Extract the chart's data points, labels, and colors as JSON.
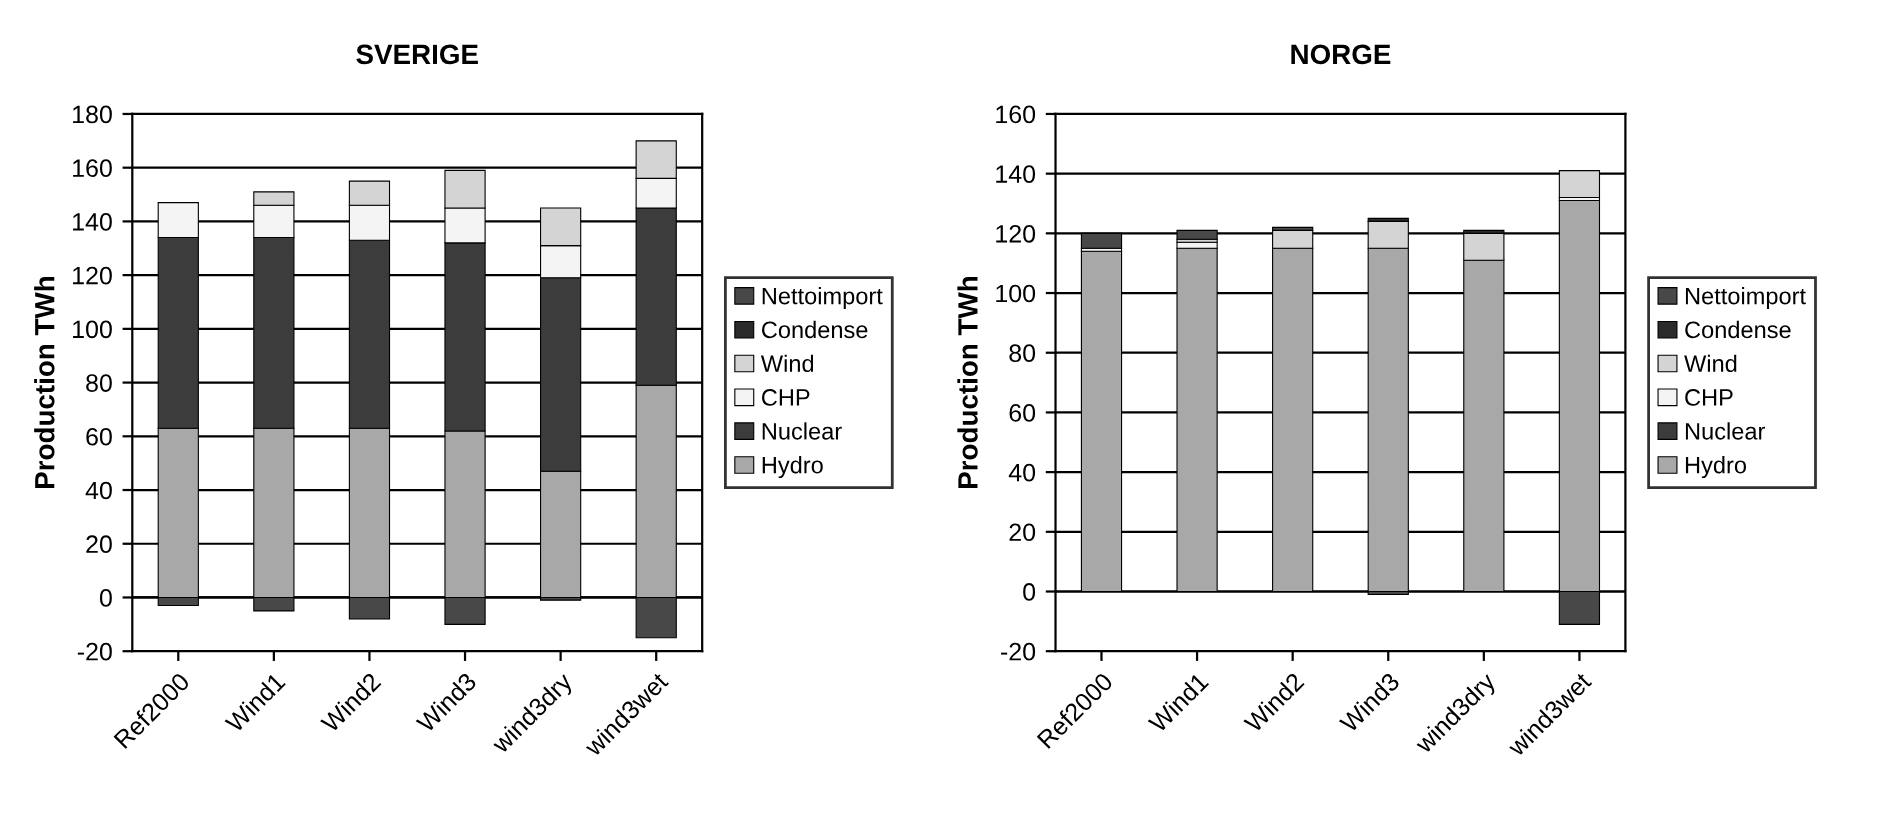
{
  "chart_data": [
    {
      "type": "bar",
      "title": "SVERIGE",
      "ylabel": "Production TWh",
      "stacked": true,
      "categories": [
        "Ref2000",
        "Wind1",
        "Wind2",
        "Wind3",
        "wind3dry",
        "wind3wet"
      ],
      "series": [
        {
          "name": "Hydro",
          "color": "#a8a8a8",
          "values": [
            63,
            63,
            63,
            62,
            47,
            79
          ]
        },
        {
          "name": "Nuclear",
          "color": "#3c3c3c",
          "values": [
            71,
            71,
            70,
            70,
            72,
            66
          ]
        },
        {
          "name": "CHP",
          "color": "#f4f4f4",
          "values": [
            13,
            12,
            13,
            13,
            12,
            11
          ]
        },
        {
          "name": "Wind",
          "color": "#d4d4d4",
          "values": [
            null,
            5,
            9,
            14,
            14,
            14
          ]
        },
        {
          "name": "Condense",
          "color": "#2a2a2a",
          "values": [
            null,
            null,
            null,
            null,
            null,
            null
          ]
        },
        {
          "name": "Nettoimport",
          "color": "#484848",
          "values": [
            -3,
            -5,
            -8,
            -10,
            -1,
            -15
          ]
        }
      ],
      "ylim": [
        -20,
        180
      ],
      "yticks": [
        -20,
        0,
        20,
        40,
        60,
        80,
        100,
        120,
        140,
        160,
        180
      ],
      "grid": "y",
      "legend": "right"
    },
    {
      "type": "bar",
      "title": "NORGE",
      "ylabel": "Production TWh",
      "stacked": true,
      "categories": [
        "Ref2000",
        "Wind1",
        "Wind2",
        "Wind3",
        "wind3dry",
        "wind3wet"
      ],
      "series": [
        {
          "name": "Hydro",
          "color": "#a8a8a8",
          "values": [
            114,
            115,
            115,
            115,
            111,
            131
          ]
        },
        {
          "name": "Nuclear",
          "color": "#3c3c3c",
          "values": [
            null,
            null,
            null,
            null,
            null,
            null
          ]
        },
        {
          "name": "CHP",
          "color": "#f4f4f4",
          "values": [
            1,
            2,
            null,
            null,
            null,
            1
          ]
        },
        {
          "name": "Wind",
          "color": "#d4d4d4",
          "values": [
            null,
            1,
            6,
            9,
            9,
            9
          ]
        },
        {
          "name": "Condense",
          "color": "#2a2a2a",
          "values": [
            null,
            null,
            null,
            1,
            1,
            null
          ]
        },
        {
          "name": "Nettoimport",
          "color": "#484848",
          "values": [
            5,
            3,
            1,
            -1,
            null,
            -11
          ]
        }
      ],
      "ylim": [
        -20,
        160
      ],
      "yticks": [
        -20,
        0,
        20,
        40,
        60,
        80,
        100,
        120,
        140,
        160
      ],
      "grid": "y",
      "legend": "right"
    }
  ]
}
